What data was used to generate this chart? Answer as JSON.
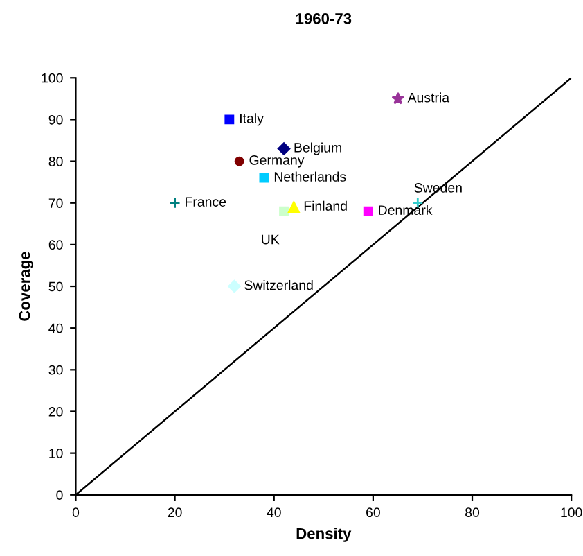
{
  "chart_data": {
    "type": "scatter",
    "title": "1960-73",
    "xlabel": "Density",
    "ylabel": "Coverage",
    "xlim": [
      0,
      100
    ],
    "ylim": [
      0,
      100
    ],
    "xticks": [
      0,
      20,
      40,
      60,
      80,
      100
    ],
    "yticks": [
      0,
      10,
      20,
      30,
      40,
      50,
      60,
      70,
      80,
      90,
      100
    ],
    "grid": false,
    "series": [
      {
        "name": "Austria",
        "color": "#993399",
        "marker": "star",
        "x": [
          65
        ],
        "values": [
          95
        ]
      },
      {
        "name": "Italy",
        "color": "#0000ff",
        "marker": "square",
        "x": [
          31
        ],
        "values": [
          90
        ]
      },
      {
        "name": "Belgium",
        "color": "#000080",
        "marker": "diamond",
        "x": [
          42
        ],
        "values": [
          83
        ]
      },
      {
        "name": "Germany",
        "color": "#800000",
        "marker": "circle",
        "x": [
          33
        ],
        "values": [
          80
        ]
      },
      {
        "name": "Netherlands",
        "color": "#00ccff",
        "marker": "square",
        "x": [
          38
        ],
        "values": [
          76
        ]
      },
      {
        "name": "France",
        "color": "#008080",
        "marker": "cross",
        "x": [
          20
        ],
        "values": [
          70
        ]
      },
      {
        "name": "UK",
        "color": "#ccffcc",
        "marker": "square",
        "x": [
          42
        ],
        "values": [
          68
        ]
      },
      {
        "name": "Finland",
        "color": "#ffff00",
        "marker": "triangle",
        "x": [
          44
        ],
        "values": [
          69
        ]
      },
      {
        "name": "Denmark",
        "color": "#ff00ff",
        "marker": "square",
        "x": [
          59
        ],
        "values": [
          68
        ]
      },
      {
        "name": "Sweden",
        "color": "#33cccc",
        "marker": "cross",
        "x": [
          69
        ],
        "values": [
          70
        ]
      },
      {
        "name": "Switzerland",
        "color": "#ccffff",
        "marker": "diamond",
        "x": [
          32
        ],
        "values": [
          50
        ]
      },
      {
        "type": "line",
        "color": "#000000",
        "marker": "none",
        "x": [
          0,
          100
        ],
        "values": [
          0,
          100
        ]
      }
    ]
  }
}
